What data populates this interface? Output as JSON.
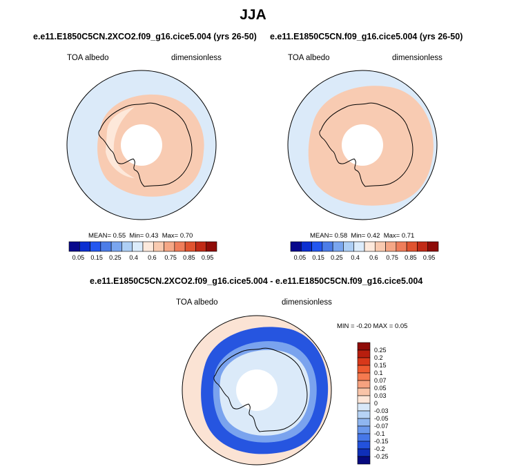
{
  "main_title": "JJA",
  "variable_label": "TOA albedo",
  "units_label": "dimensionless",
  "panels": [
    {
      "title": "e.e11.E1850C5CN.2XCO2.f09_g16.cice5.004 (yrs 26-50)",
      "stats": {
        "mean_label": "MEAN=",
        "mean": "0.55",
        "min_label": "Min=",
        "min": "0.43",
        "max_label": "Max=",
        "max": "0.70"
      }
    },
    {
      "title": "e.e11.E1850C5CN.f09_g16.cice5.004 (yrs 26-50)",
      "stats": {
        "mean_label": "MEAN=",
        "mean": "0.58",
        "min_label": "Min=",
        "min": "0.42",
        "max_label": "Max=",
        "max": "0.71"
      }
    }
  ],
  "diff_panel": {
    "title": "e.e11.E1850C5CN.2XCO2.f09_g16.cice5.004 - e.e11.E1850C5CN.f09_g16.cice5.004",
    "minmax_text": "MIN =  -0.20 MAX =   0.05"
  },
  "albedo_colorbar": {
    "colors": [
      "#08088c",
      "#0b2fd1",
      "#2357f0",
      "#4c7de8",
      "#7aa6ef",
      "#aecff5",
      "#dcecfb",
      "#fde9dc",
      "#f9cab0",
      "#f5a786",
      "#ef7d5a",
      "#e0532f",
      "#c12a16",
      "#8f0c08"
    ],
    "ticks": [
      "0.05",
      "0.15",
      "0.25",
      "0.4",
      "0.6",
      "0.75",
      "0.85",
      "0.95"
    ]
  },
  "diff_colorbar": {
    "colors": [
      "#8f0c08",
      "#b81e0e",
      "#d8381a",
      "#ee5a30",
      "#f57a50",
      "#f7a27f",
      "#f9c4a8",
      "#fde6d8",
      "#d8e8f8",
      "#b6d3f5",
      "#8fb6f0",
      "#6a98ec",
      "#4677e8",
      "#2352dc",
      "#0f2fb8",
      "#060a7e"
    ],
    "ticks": [
      "0.25",
      "0.2",
      "0.15",
      "0.1",
      "0.07",
      "0.05",
      "0.03",
      "0",
      "-0.03",
      "-0.05",
      "-0.07",
      "-0.1",
      "-0.15",
      "-0.2",
      "-0.25"
    ]
  },
  "colors": {
    "ocean_light": "#dbeaf9",
    "albedo_ring": "#f8cbb2",
    "albedo_ring_pale": "#fde8da",
    "pole_hole": "#ffffff",
    "diff_strong_neg": "#2655e0",
    "diff_mid_neg": "#7aa3ee",
    "diff_weak_pos": "#fbe3d4",
    "coast": "#000000"
  }
}
